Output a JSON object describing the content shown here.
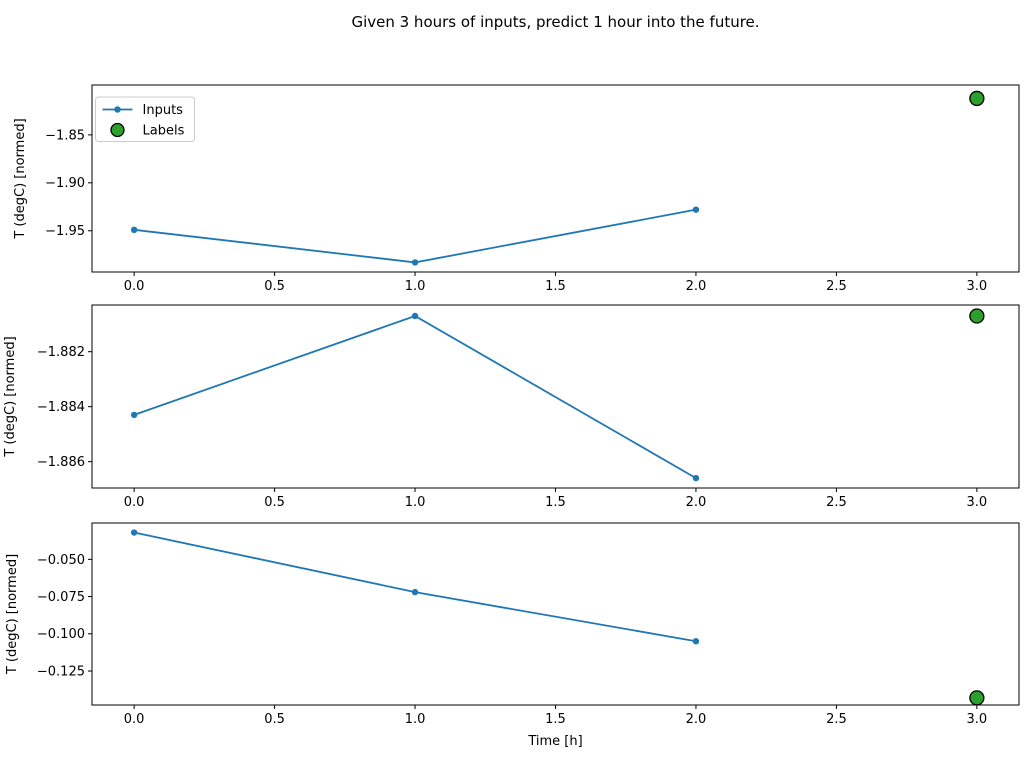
{
  "title": "Given 3 hours of inputs, predict 1 hour into the future.",
  "xlabel": "Time [h]",
  "ylabel": "T (degC) [normed]",
  "legend": {
    "position": "upper-left-subplot-1",
    "items": [
      {
        "label": "Inputs",
        "marker": "line-dot",
        "color": "#1f77b4"
      },
      {
        "label": "Labels",
        "marker": "circle",
        "color": "#2ca02c",
        "edge_color": "#000000"
      }
    ]
  },
  "colors": {
    "inputs_line": "#1f77b4",
    "labels_fill": "#2ca02c",
    "labels_edge": "#000000",
    "axis": "#000000",
    "legend_border": "#cccccc"
  },
  "xticks": [
    {
      "value": 0.0,
      "label": "0.0"
    },
    {
      "value": 0.5,
      "label": "0.5"
    },
    {
      "value": 1.0,
      "label": "1.0"
    },
    {
      "value": 1.5,
      "label": "1.5"
    },
    {
      "value": 2.0,
      "label": "2.0"
    },
    {
      "value": 2.5,
      "label": "2.5"
    },
    {
      "value": 3.0,
      "label": "3.0"
    }
  ],
  "chart_data": [
    {
      "type": "line",
      "ylabel": "T (degC) [normed]",
      "xlabel": "",
      "xlim": [
        -0.15,
        3.15
      ],
      "ylim": [
        -1.993,
        -1.798
      ],
      "grid": false,
      "yticks": [
        {
          "value": -1.85,
          "label": "−1.85"
        },
        {
          "value": -1.9,
          "label": "−1.90"
        },
        {
          "value": -1.95,
          "label": "−1.95"
        }
      ],
      "series": [
        {
          "name": "Inputs",
          "type": "line",
          "x": [
            0,
            1,
            2
          ],
          "y": [
            -1.949,
            -1.983,
            -1.928
          ]
        },
        {
          "name": "Labels",
          "type": "scatter",
          "x": [
            3
          ],
          "y": [
            -1.812
          ]
        }
      ]
    },
    {
      "type": "line",
      "ylabel": "T (degC) [normed]",
      "xlabel": "",
      "xlim": [
        -0.15,
        3.15
      ],
      "ylim": [
        -1.88696,
        -1.8803
      ],
      "grid": false,
      "yticks": [
        {
          "value": -1.882,
          "label": "−1.882"
        },
        {
          "value": -1.884,
          "label": "−1.884"
        },
        {
          "value": -1.886,
          "label": "−1.886"
        }
      ],
      "series": [
        {
          "name": "Inputs",
          "type": "line",
          "x": [
            0,
            1,
            2
          ],
          "y": [
            -1.8843,
            -1.8807,
            -1.8866
          ]
        },
        {
          "name": "Labels",
          "type": "scatter",
          "x": [
            3
          ],
          "y": [
            -1.8807
          ]
        }
      ]
    },
    {
      "type": "line",
      "ylabel": "T (degC) [normed]",
      "xlabel": "Time [h]",
      "xlim": [
        -0.15,
        3.15
      ],
      "ylim": [
        -0.1478,
        -0.0256
      ],
      "grid": false,
      "yticks": [
        {
          "value": -0.05,
          "label": "−0.050"
        },
        {
          "value": -0.075,
          "label": "−0.075"
        },
        {
          "value": -0.1,
          "label": "−0.100"
        },
        {
          "value": -0.125,
          "label": "−0.125"
        }
      ],
      "series": [
        {
          "name": "Inputs",
          "type": "line",
          "x": [
            0,
            1,
            2
          ],
          "y": [
            -0.032,
            -0.072,
            -0.105
          ]
        },
        {
          "name": "Labels",
          "type": "scatter",
          "x": [
            3
          ],
          "y": [
            -0.143
          ]
        }
      ]
    }
  ]
}
